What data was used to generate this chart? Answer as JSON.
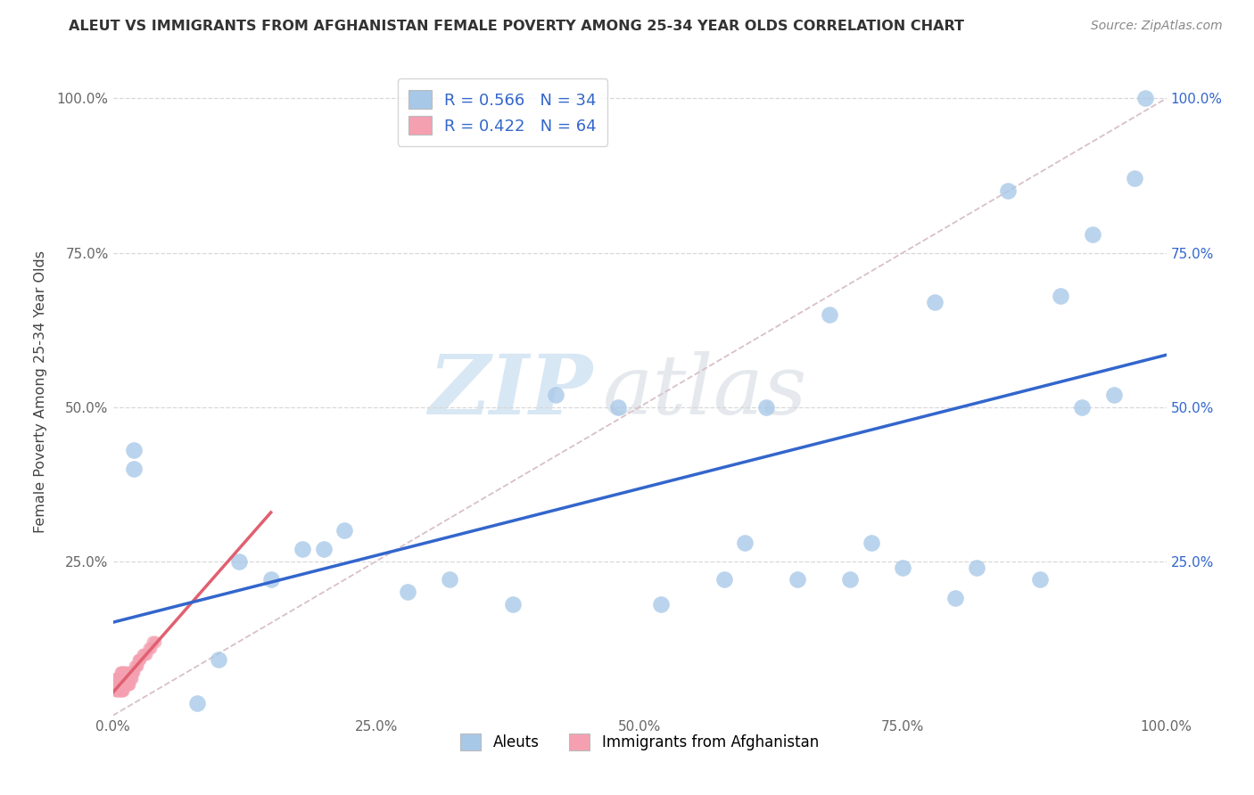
{
  "title": "ALEUT VS IMMIGRANTS FROM AFGHANISTAN FEMALE POVERTY AMONG 25-34 YEAR OLDS CORRELATION CHART",
  "source": "Source: ZipAtlas.com",
  "ylabel": "Female Poverty Among 25-34 Year Olds",
  "watermark_zip": "ZIP",
  "watermark_atlas": "atlas",
  "legend_entry1": "R = 0.566   N = 34",
  "legend_entry2": "R = 0.422   N = 64",
  "legend_label1": "Aleuts",
  "legend_label2": "Immigrants from Afghanistan",
  "aleut_color": "#a8c8e8",
  "afghan_color": "#f4a0b0",
  "aleut_line_color": "#3366cc",
  "afghan_line_color": "#e06070",
  "diagonal_color": "#d8c0c8",
  "background_color": "#ffffff",
  "grid_color": "#d8d8d8",
  "right_tick_color": "#3366cc",
  "title_color": "#333333",
  "source_color": "#888888",
  "tick_color": "#666666",
  "aleut_x": [
    0.02,
    0.02,
    0.08,
    0.1,
    0.12,
    0.15,
    0.18,
    0.2,
    0.22,
    0.28,
    0.32,
    0.38,
    0.42,
    0.48,
    0.52,
    0.58,
    0.6,
    0.62,
    0.65,
    0.68,
    0.7,
    0.72,
    0.75,
    0.78,
    0.8,
    0.82,
    0.85,
    0.88,
    0.9,
    0.92,
    0.93,
    0.95,
    0.97,
    0.98
  ],
  "aleut_y": [
    0.43,
    0.4,
    0.02,
    0.09,
    0.25,
    0.22,
    0.27,
    0.27,
    0.3,
    0.2,
    0.22,
    0.18,
    0.52,
    0.5,
    0.18,
    0.22,
    0.28,
    0.5,
    0.22,
    0.65,
    0.22,
    0.28,
    0.24,
    0.67,
    0.19,
    0.24,
    0.85,
    0.22,
    0.68,
    0.5,
    0.78,
    0.52,
    0.87,
    1.0
  ],
  "afghan_x": [
    0.003,
    0.003,
    0.003,
    0.003,
    0.004,
    0.004,
    0.004,
    0.005,
    0.005,
    0.005,
    0.005,
    0.006,
    0.006,
    0.006,
    0.006,
    0.007,
    0.007,
    0.007,
    0.007,
    0.007,
    0.008,
    0.008,
    0.008,
    0.008,
    0.009,
    0.009,
    0.009,
    0.01,
    0.01,
    0.01,
    0.01,
    0.011,
    0.011,
    0.011,
    0.012,
    0.012,
    0.012,
    0.013,
    0.013,
    0.014,
    0.014,
    0.015,
    0.015,
    0.016,
    0.016,
    0.017,
    0.017,
    0.018,
    0.018,
    0.019,
    0.02,
    0.021,
    0.022,
    0.023,
    0.024,
    0.025,
    0.026,
    0.028,
    0.03,
    0.032,
    0.034,
    0.036,
    0.038,
    0.04
  ],
  "afghan_y": [
    0.04,
    0.05,
    0.05,
    0.06,
    0.04,
    0.05,
    0.06,
    0.04,
    0.05,
    0.05,
    0.06,
    0.04,
    0.05,
    0.05,
    0.06,
    0.04,
    0.05,
    0.05,
    0.06,
    0.07,
    0.04,
    0.05,
    0.06,
    0.07,
    0.04,
    0.05,
    0.06,
    0.04,
    0.05,
    0.06,
    0.07,
    0.05,
    0.06,
    0.07,
    0.05,
    0.06,
    0.07,
    0.05,
    0.06,
    0.05,
    0.06,
    0.05,
    0.06,
    0.05,
    0.07,
    0.06,
    0.07,
    0.06,
    0.07,
    0.07,
    0.07,
    0.08,
    0.08,
    0.08,
    0.09,
    0.09,
    0.09,
    0.1,
    0.1,
    0.1,
    0.11,
    0.11,
    0.12,
    0.12
  ],
  "xmin": 0.0,
  "xmax": 1.0,
  "ymin": 0.0,
  "ymax": 1.05,
  "xtick_labels": [
    "0.0%",
    "25.0%",
    "50.0%",
    "75.0%",
    "100.0%"
  ],
  "xtick_positions": [
    0.0,
    0.25,
    0.5,
    0.75,
    1.0
  ],
  "ytick_positions": [
    0.25,
    0.5,
    0.75,
    1.0
  ],
  "ytick_labels": [
    "25.0%",
    "50.0%",
    "75.0%",
    "100.0%"
  ]
}
